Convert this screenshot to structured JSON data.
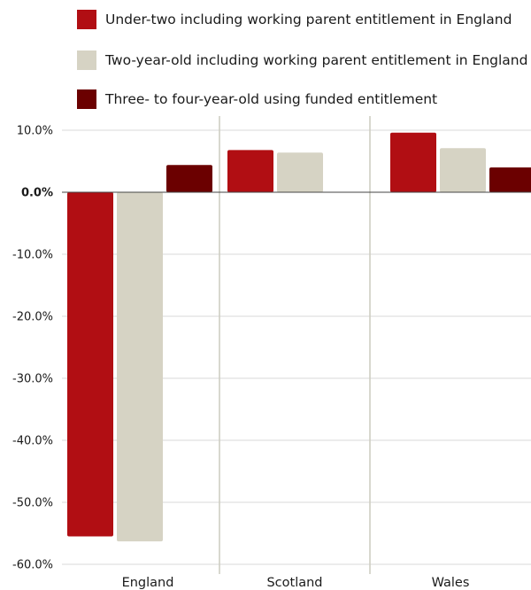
{
  "chart_data": {
    "type": "bar",
    "title": "",
    "xlabel": "",
    "ylabel": "",
    "categories": [
      "England",
      "Scotland",
      "Wales"
    ],
    "series": [
      {
        "name": "Under-two including working parent entitlement in England",
        "color": "#b10e13",
        "values": [
          -55.5,
          6.8,
          9.6
        ]
      },
      {
        "name": "Two-year-old including working parent entitlement in England",
        "color": "#d6d3c4",
        "values": [
          -56.3,
          6.4,
          7.1
        ]
      },
      {
        "name": "Three- to four-year-old using funded entitlement",
        "color": "#6b0000",
        "values": [
          4.4,
          0,
          4.0
        ]
      }
    ],
    "yticks": [
      "10.0%",
      "0.0%",
      "-10.0%",
      "-20.0%",
      "-30.0%",
      "-40.0%",
      "-50.0%",
      "-60.0%"
    ],
    "ylim": [
      -60,
      10
    ],
    "grid": true,
    "legend_position": "top"
  }
}
